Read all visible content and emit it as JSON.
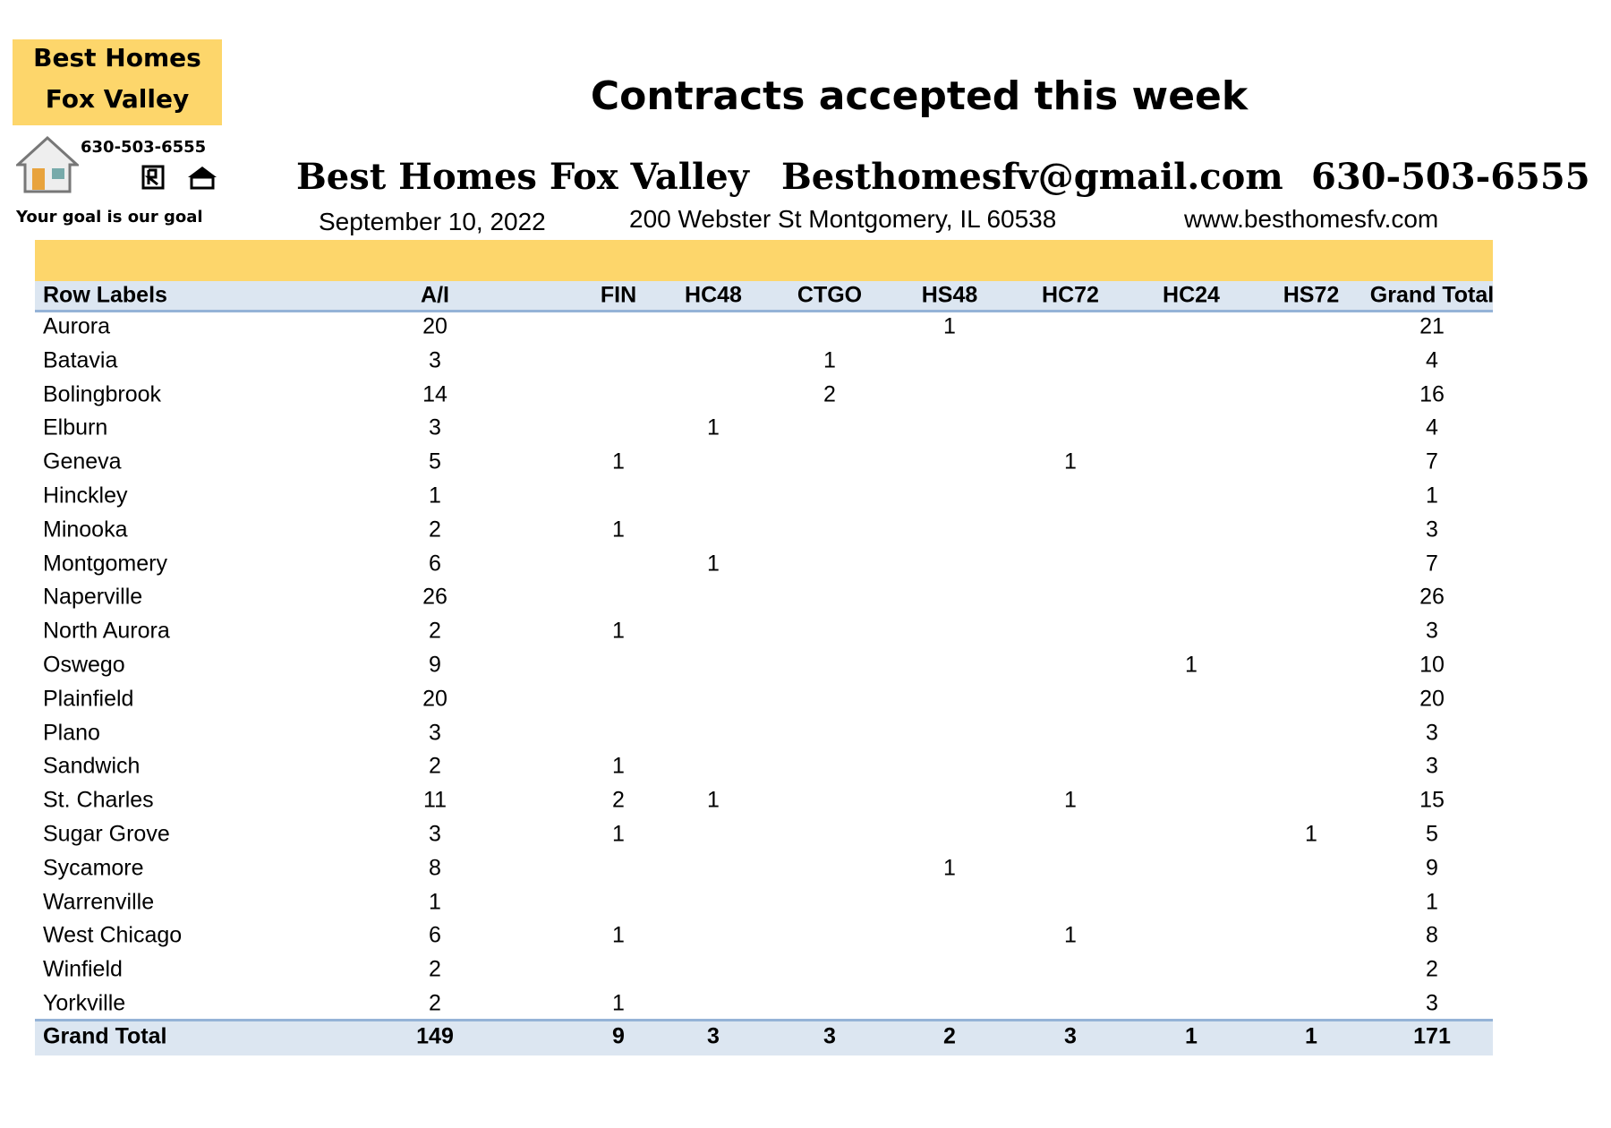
{
  "logo": {
    "line1": "Best Homes",
    "line2": "Fox Valley",
    "phone": "630-503-6555",
    "tagline": "Your goal is our goal"
  },
  "header": {
    "title": "Contracts accepted this week",
    "brand": "Best Homes Fox Valley",
    "email": "Besthomesfv@gmail.com",
    "phone": "630-503-6555",
    "date": "September 10, 2022",
    "address": "200 Webster St Montgomery, IL 60538",
    "website": "www.besthomesfv.com"
  },
  "table": {
    "columns": [
      "Row Labels",
      "A/I",
      "FIN",
      "HC48",
      "CTGO",
      "HS48",
      "HC72",
      "HC24",
      "HS72",
      "Grand Total"
    ],
    "rows": [
      {
        "label": "Aurora",
        "cells": [
          20,
          null,
          null,
          null,
          1,
          null,
          null,
          null,
          21
        ]
      },
      {
        "label": "Batavia",
        "cells": [
          3,
          null,
          null,
          1,
          null,
          null,
          null,
          null,
          4
        ]
      },
      {
        "label": "Bolingbrook",
        "cells": [
          14,
          null,
          null,
          2,
          null,
          null,
          null,
          null,
          16
        ]
      },
      {
        "label": "Elburn",
        "cells": [
          3,
          null,
          1,
          null,
          null,
          null,
          null,
          null,
          4
        ]
      },
      {
        "label": "Geneva",
        "cells": [
          5,
          1,
          null,
          null,
          null,
          1,
          null,
          null,
          7
        ]
      },
      {
        "label": "Hinckley",
        "cells": [
          1,
          null,
          null,
          null,
          null,
          null,
          null,
          null,
          1
        ]
      },
      {
        "label": "Minooka",
        "cells": [
          2,
          1,
          null,
          null,
          null,
          null,
          null,
          null,
          3
        ]
      },
      {
        "label": "Montgomery",
        "cells": [
          6,
          null,
          1,
          null,
          null,
          null,
          null,
          null,
          7
        ]
      },
      {
        "label": "Naperville",
        "cells": [
          26,
          null,
          null,
          null,
          null,
          null,
          null,
          null,
          26
        ]
      },
      {
        "label": "North Aurora",
        "cells": [
          2,
          1,
          null,
          null,
          null,
          null,
          null,
          null,
          3
        ]
      },
      {
        "label": "Oswego",
        "cells": [
          9,
          null,
          null,
          null,
          null,
          null,
          1,
          null,
          10
        ]
      },
      {
        "label": "Plainfield",
        "cells": [
          20,
          null,
          null,
          null,
          null,
          null,
          null,
          null,
          20
        ]
      },
      {
        "label": "Plano",
        "cells": [
          3,
          null,
          null,
          null,
          null,
          null,
          null,
          null,
          3
        ]
      },
      {
        "label": "Sandwich",
        "cells": [
          2,
          1,
          null,
          null,
          null,
          null,
          null,
          null,
          3
        ]
      },
      {
        "label": "St. Charles",
        "cells": [
          11,
          2,
          1,
          null,
          null,
          1,
          null,
          null,
          15
        ]
      },
      {
        "label": "Sugar Grove",
        "cells": [
          3,
          1,
          null,
          null,
          null,
          null,
          null,
          1,
          5
        ]
      },
      {
        "label": "Sycamore",
        "cells": [
          8,
          null,
          null,
          null,
          1,
          null,
          null,
          null,
          9
        ]
      },
      {
        "label": "Warrenville",
        "cells": [
          1,
          null,
          null,
          null,
          null,
          null,
          null,
          null,
          1
        ]
      },
      {
        "label": "West Chicago",
        "cells": [
          6,
          1,
          null,
          null,
          null,
          1,
          null,
          null,
          8
        ]
      },
      {
        "label": "Winfield",
        "cells": [
          2,
          null,
          null,
          null,
          null,
          null,
          null,
          null,
          2
        ]
      },
      {
        "label": "Yorkville",
        "cells": [
          2,
          1,
          null,
          null,
          null,
          null,
          null,
          null,
          3
        ]
      }
    ],
    "total": {
      "label": "Grand Total",
      "cells": [
        149,
        9,
        3,
        3,
        2,
        3,
        1,
        1,
        171
      ]
    }
  }
}
